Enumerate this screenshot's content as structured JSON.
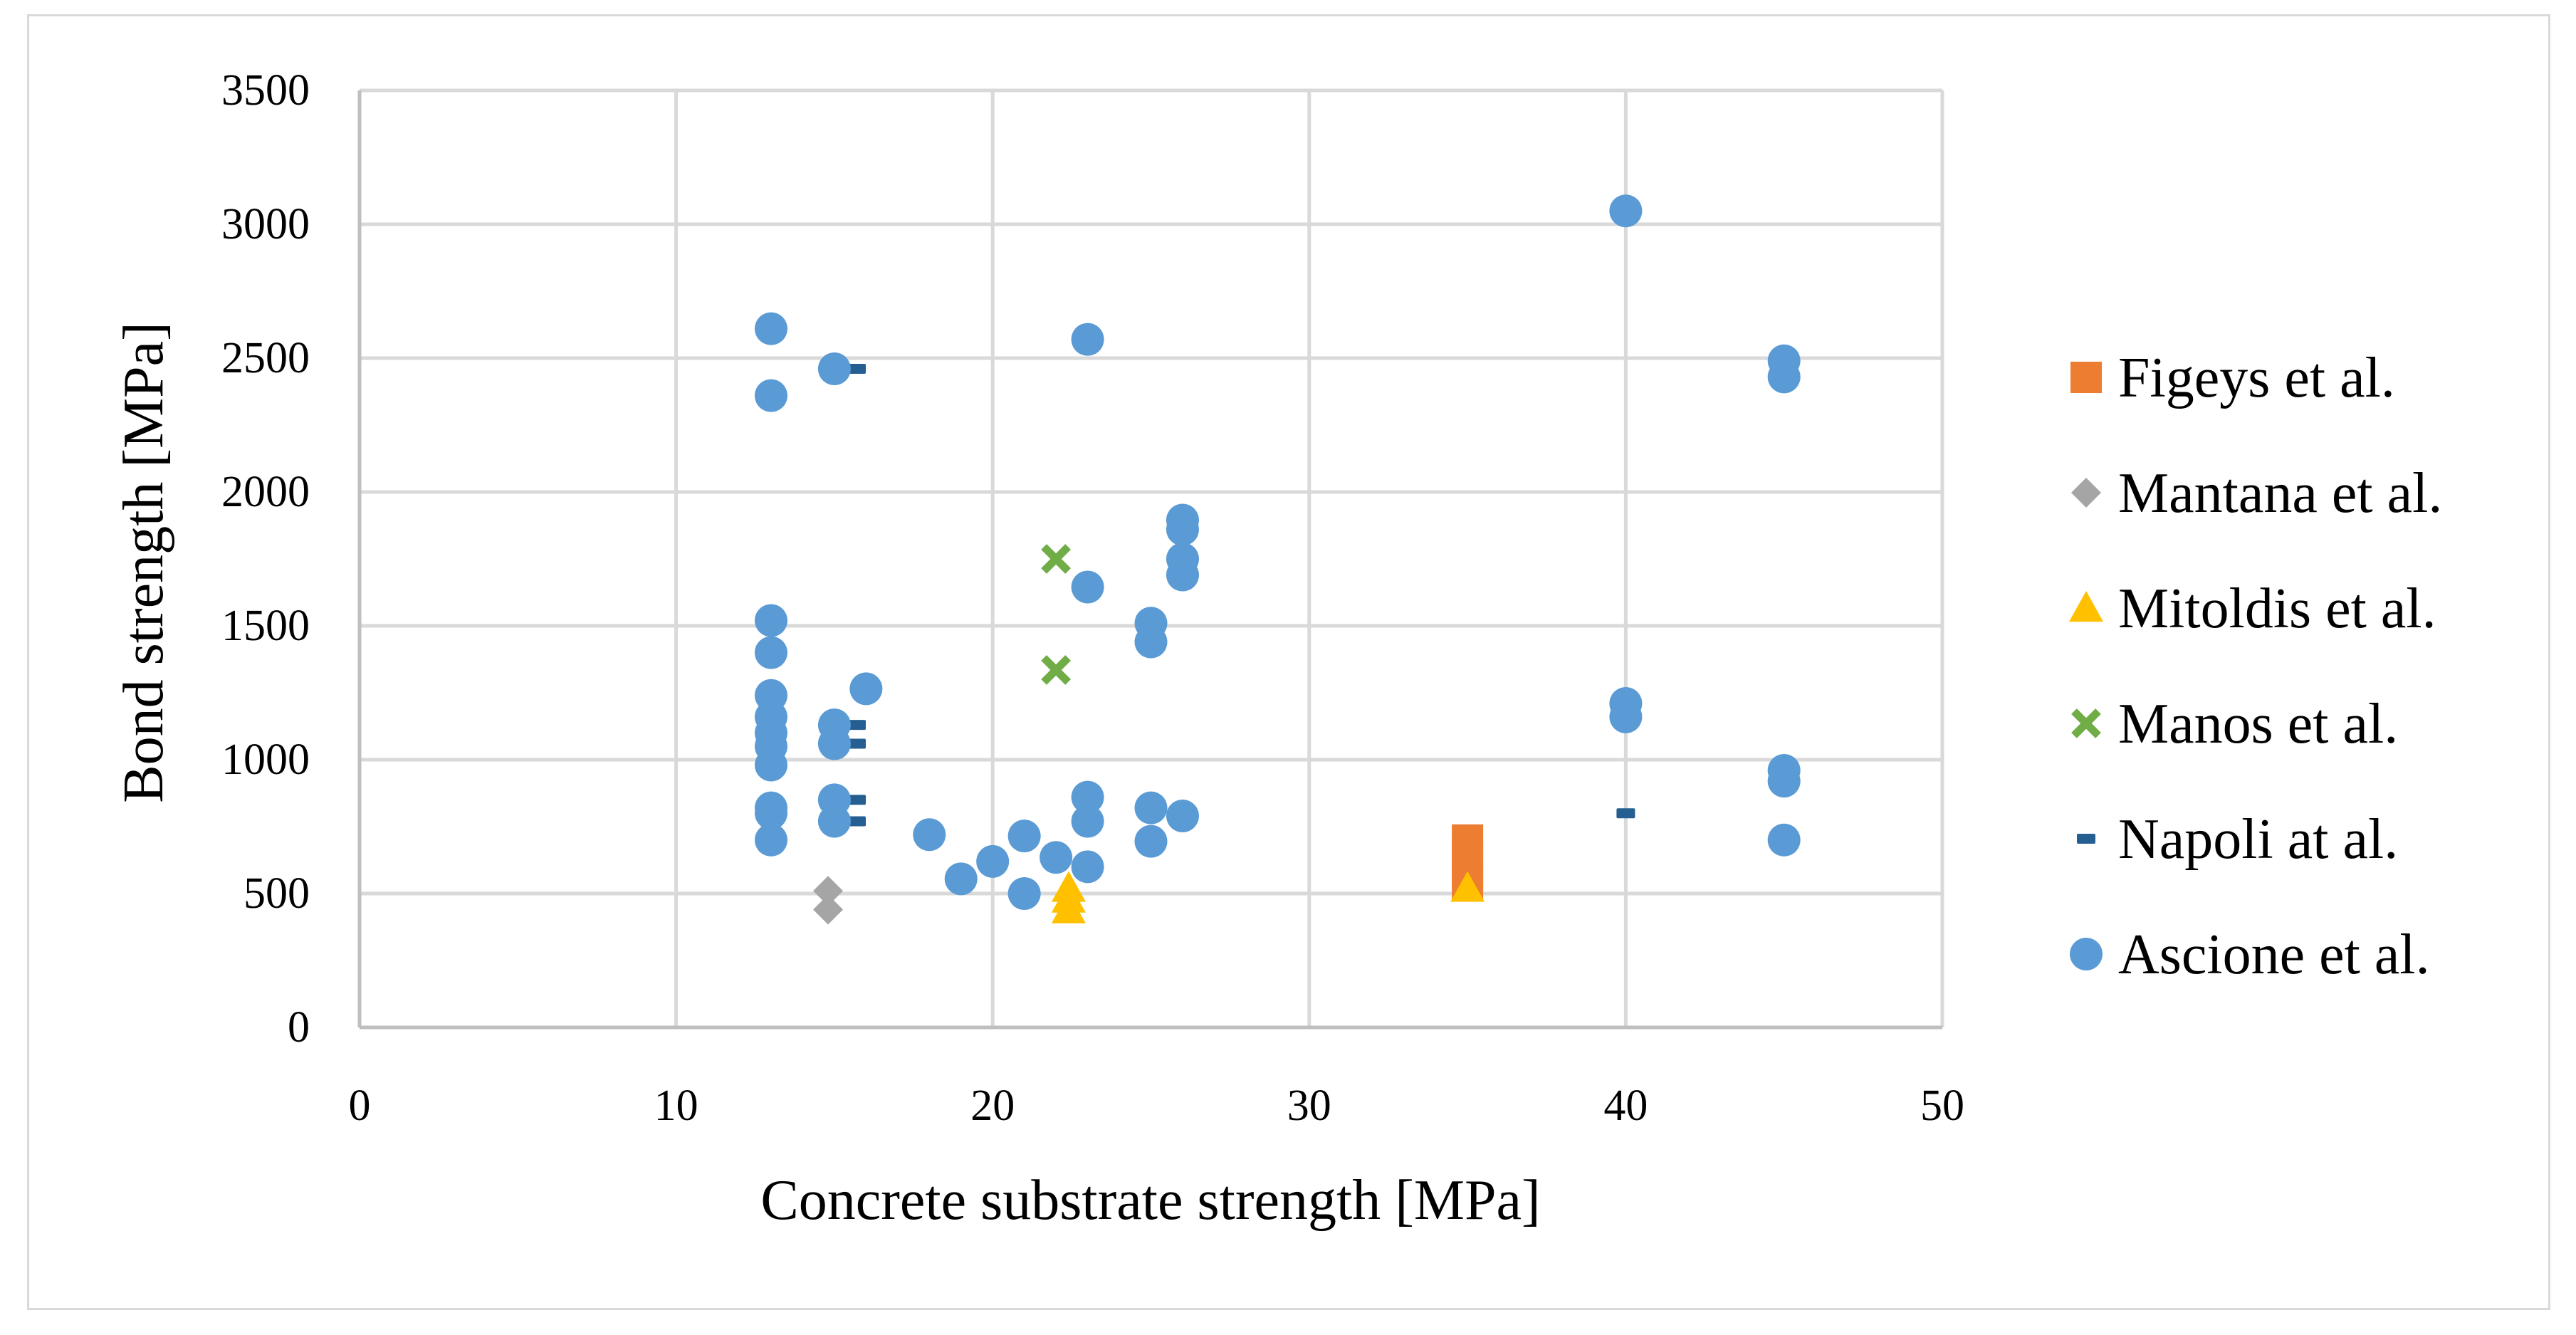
{
  "chart_data": {
    "type": "scatter",
    "title": "",
    "xlabel": "Concrete substrate strength [MPa]",
    "ylabel": "Bond strength [MPa]",
    "xlim": [
      0,
      50
    ],
    "ylim": [
      0,
      3500
    ],
    "xticks": [
      0,
      10,
      20,
      30,
      40,
      50
    ],
    "yticks": [
      0,
      500,
      1000,
      1500,
      2000,
      2500,
      3000,
      3500
    ],
    "grid": true,
    "legend_position": "right",
    "series": [
      {
        "name": "Figeys et al.",
        "marker": "square",
        "color": "#ed7d31",
        "points": [
          [
            35,
            700
          ],
          [
            35,
            640
          ],
          [
            35,
            580
          ],
          [
            35,
            530
          ]
        ]
      },
      {
        "name": "Mantana et al.",
        "marker": "diamond",
        "color": "#a5a5a5",
        "points": [
          [
            14.8,
            510
          ],
          [
            14.8,
            440
          ]
        ]
      },
      {
        "name": "Mitoldis et al.",
        "marker": "triangle",
        "color": "#ffc000",
        "points": [
          [
            22.4,
            520
          ],
          [
            22.4,
            480
          ],
          [
            22.4,
            440
          ],
          [
            35,
            520
          ]
        ]
      },
      {
        "name": "Manos et al.",
        "marker": "x",
        "color": "#70ad47",
        "points": [
          [
            22,
            1750
          ],
          [
            22,
            1335
          ]
        ]
      },
      {
        "name": "Napoli at al.",
        "marker": "dash",
        "color": "#255e91",
        "points": [
          [
            15.7,
            2460
          ],
          [
            15.7,
            1130
          ],
          [
            15.7,
            1060
          ],
          [
            15.7,
            850
          ],
          [
            15.7,
            770
          ],
          [
            40,
            800
          ]
        ]
      },
      {
        "name": "Ascione et al.",
        "marker": "circle",
        "color": "#5b9bd5",
        "points": [
          [
            13,
            2610
          ],
          [
            13,
            2360
          ],
          [
            13,
            1520
          ],
          [
            13,
            1400
          ],
          [
            13,
            1240
          ],
          [
            13,
            1160
          ],
          [
            13,
            1100
          ],
          [
            13,
            1050
          ],
          [
            13,
            980
          ],
          [
            13,
            820
          ],
          [
            13,
            800
          ],
          [
            13,
            700
          ],
          [
            15,
            2460
          ],
          [
            15,
            1130
          ],
          [
            15,
            1060
          ],
          [
            15,
            850
          ],
          [
            15,
            770
          ],
          [
            16,
            1265
          ],
          [
            18,
            720
          ],
          [
            19,
            555
          ],
          [
            20,
            620
          ],
          [
            21,
            715
          ],
          [
            21,
            500
          ],
          [
            22,
            635
          ],
          [
            23,
            2570
          ],
          [
            23,
            1645
          ],
          [
            23,
            860
          ],
          [
            23,
            770
          ],
          [
            23,
            600
          ],
          [
            25,
            1510
          ],
          [
            25,
            1440
          ],
          [
            25,
            820
          ],
          [
            25,
            695
          ],
          [
            26,
            1895
          ],
          [
            26,
            1860
          ],
          [
            26,
            1750
          ],
          [
            26,
            1690
          ],
          [
            26,
            790
          ],
          [
            40,
            3050
          ],
          [
            40,
            1210
          ],
          [
            40,
            1160
          ],
          [
            45,
            2490
          ],
          [
            45,
            2430
          ],
          [
            45,
            960
          ],
          [
            45,
            920
          ],
          [
            45,
            700
          ]
        ]
      }
    ]
  }
}
